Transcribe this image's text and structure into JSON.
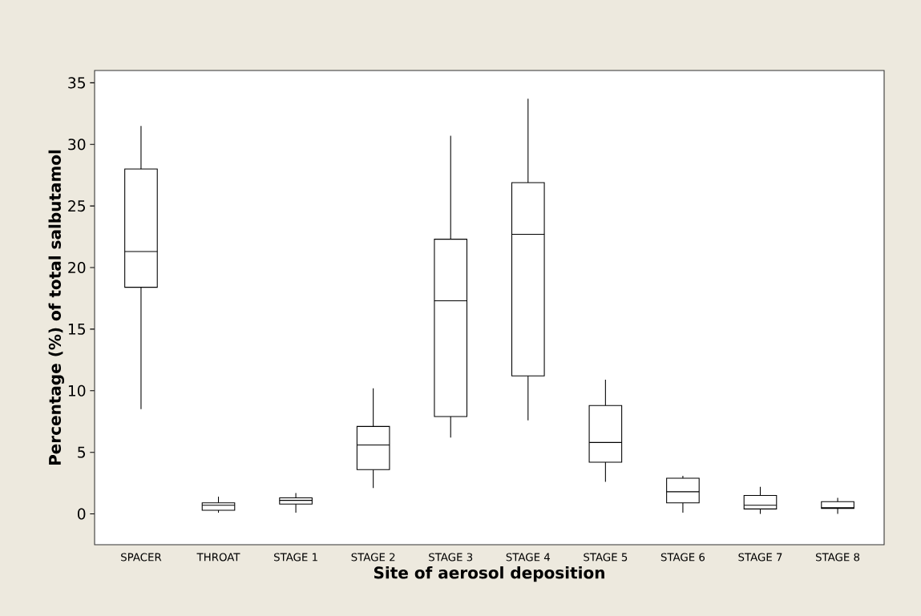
{
  "chart_data": {
    "type": "box",
    "xlabel": "Site of aerosol deposition",
    "ylabel": "Percentage (%) of total salbutamol",
    "categories": [
      "SPACER",
      "THROAT",
      "STAGE 1",
      "STAGE 2",
      "STAGE 3",
      "STAGE 4",
      "STAGE 5",
      "STAGE 6",
      "STAGE 7",
      "STAGE 8"
    ],
    "boxes": [
      {
        "low": 8.5,
        "q1": 18.4,
        "median": 21.3,
        "q3": 28.0,
        "high": 31.5
      },
      {
        "low": 0.1,
        "q1": 0.3,
        "median": 0.7,
        "q3": 0.9,
        "high": 1.4
      },
      {
        "low": 0.1,
        "q1": 0.8,
        "median": 1.1,
        "q3": 1.3,
        "high": 1.7
      },
      {
        "low": 2.1,
        "q1": 3.6,
        "median": 5.6,
        "q3": 7.1,
        "high": 10.2
      },
      {
        "low": 6.2,
        "q1": 7.9,
        "median": 17.3,
        "q3": 22.3,
        "high": 30.7
      },
      {
        "low": 7.6,
        "q1": 11.2,
        "median": 22.7,
        "q3": 26.9,
        "high": 33.7
      },
      {
        "low": 2.6,
        "q1": 4.2,
        "median": 5.8,
        "q3": 8.8,
        "high": 10.9
      },
      {
        "low": 0.1,
        "q1": 0.9,
        "median": 1.8,
        "q3": 2.9,
        "high": 3.1
      },
      {
        "low": 0.0,
        "q1": 0.4,
        "median": 0.7,
        "q3": 1.5,
        "high": 2.2
      },
      {
        "low": 0.0,
        "q1": 0.45,
        "median": 0.5,
        "q3": 1.0,
        "high": 1.3
      }
    ],
    "color": "#000000",
    "ylim": [
      -2.5,
      36
    ],
    "yticks": [
      0,
      5,
      10,
      15,
      20,
      25,
      30,
      35
    ]
  }
}
